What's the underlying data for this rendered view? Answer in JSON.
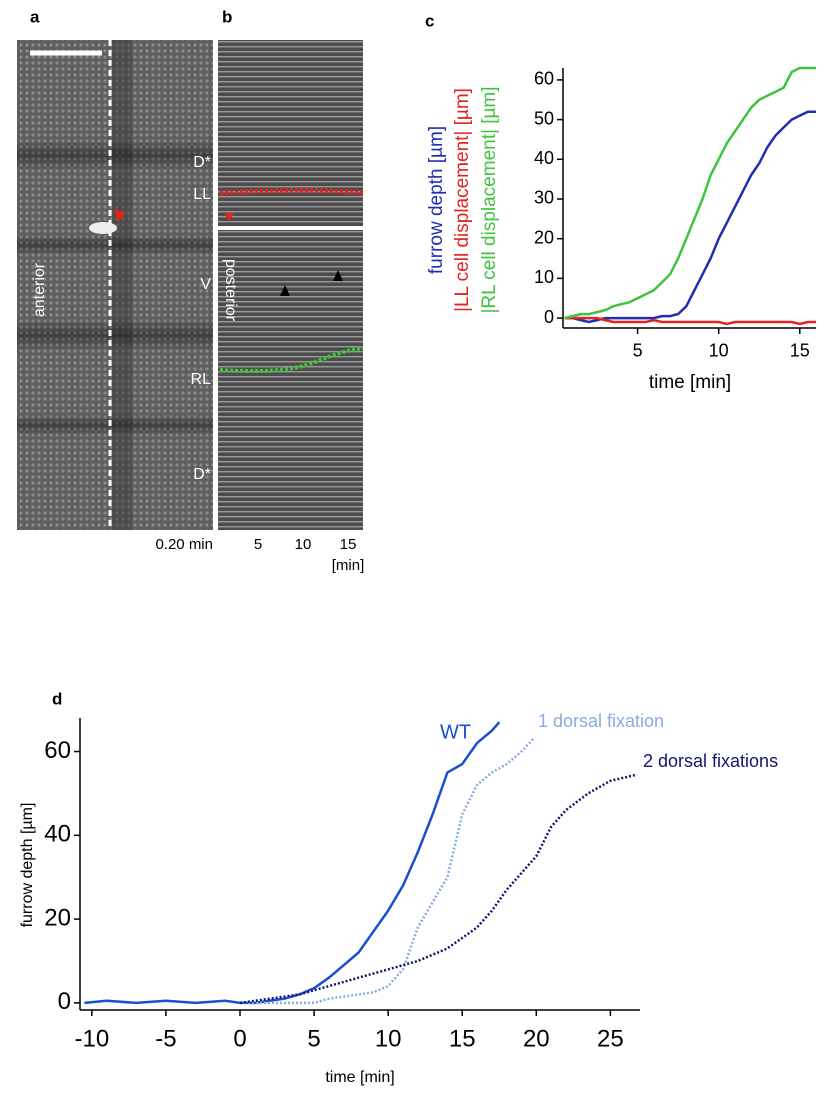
{
  "figure": {
    "panel_labels": [
      "a",
      "b",
      "c",
      "d"
    ],
    "panel_a": {
      "orientation": "anterior",
      "regions": [
        "D*",
        "LL",
        "V",
        "RL",
        "D*"
      ],
      "time_label": "0.20 min"
    },
    "panel_b": {
      "orientation": "posterior",
      "time_ticks": [
        "5",
        "10",
        "15"
      ],
      "time_unit": "[min]"
    }
  },
  "chart_data": [
    {
      "type": "line",
      "xlabel": "time [min]",
      "x": [
        0.5,
        1,
        1.5,
        2,
        2.5,
        3,
        3.5,
        4,
        4.5,
        5,
        5.5,
        6,
        6.5,
        7,
        7.5,
        8,
        8.5,
        9,
        9.5,
        10,
        10.5,
        11,
        11.5,
        12,
        12.5,
        13,
        13.5,
        14,
        14.5,
        15,
        15.5,
        16
      ],
      "series": [
        {
          "name": "furrow depth [µm]",
          "color": "#1f2fb0",
          "values": [
            0,
            0,
            -0.5,
            -1,
            -0.5,
            0,
            0,
            0,
            0,
            0,
            0,
            0,
            0.5,
            0.5,
            1,
            3,
            7,
            11,
            15,
            20,
            24,
            28,
            32,
            36,
            39,
            43,
            46,
            48,
            50,
            51,
            52,
            52
          ]
        },
        {
          "name": "|LL cell displacement| [µm]",
          "color": "#e0241f",
          "values": [
            0,
            0,
            0,
            0,
            0,
            -0.5,
            -1,
            -1,
            -1,
            -1,
            -1,
            -0.5,
            -1,
            -1,
            -1,
            -1,
            -1,
            -1,
            -1,
            -1,
            -1.5,
            -1,
            -1,
            -1,
            -1,
            -1,
            -1,
            -1,
            -1,
            -1.5,
            -1,
            -1
          ]
        },
        {
          "name": "|RL cell displacement| [µm]",
          "color": "#3ec43e",
          "values": [
            0,
            0.5,
            1,
            1,
            1.5,
            2,
            3,
            3.5,
            4,
            5,
            6,
            7,
            9,
            11,
            15,
            20,
            25,
            30,
            36,
            40,
            44,
            47,
            50,
            53,
            55,
            56,
            57,
            58,
            62,
            63,
            63,
            63
          ]
        }
      ],
      "xlim": [
        0.4,
        16
      ],
      "ylim": [
        -2.5,
        63
      ],
      "xticks": [
        5,
        10,
        15
      ],
      "yticks": [
        0,
        10,
        20,
        30,
        40,
        50,
        60
      ]
    },
    {
      "type": "line",
      "xlabel": "time [min]",
      "ylabel": "furrow depth [µm]",
      "series": [
        {
          "name": "WT",
          "color": "#1a4fd1",
          "style": "solid",
          "x": [
            -10.5,
            -9,
            -7,
            -5,
            -3,
            -1,
            0,
            1,
            2,
            3,
            4,
            5,
            6,
            7,
            8,
            9,
            10,
            11,
            12,
            13,
            14,
            15,
            16,
            17,
            17.5
          ],
          "values": [
            0,
            0.5,
            0,
            0.5,
            0,
            0.5,
            0,
            0,
            0.5,
            1,
            2,
            3.5,
            6,
            9,
            12,
            17,
            22,
            28,
            36,
            45,
            55,
            57,
            62,
            65,
            67
          ]
        },
        {
          "name": "1 dorsal fixation",
          "color": "#8aabe0",
          "style": "dotted",
          "x": [
            0,
            1,
            2,
            3,
            4,
            5,
            6,
            7,
            8,
            9,
            10,
            11,
            12,
            13,
            14,
            15,
            16,
            17,
            18,
            19,
            19.8
          ],
          "values": [
            0,
            0,
            0,
            0,
            0,
            0,
            1,
            1.5,
            2,
            2.5,
            4,
            8,
            18,
            24,
            30,
            45,
            52,
            55,
            57,
            60,
            63
          ]
        },
        {
          "name": "2 dorsal fixations",
          "color": "#14146e",
          "style": "dotted",
          "x": [
            0,
            2,
            4,
            6,
            8,
            10,
            12,
            14,
            16,
            17,
            18,
            19.5,
            20,
            21,
            22,
            23.5,
            25,
            26.8
          ],
          "values": [
            0,
            1,
            2,
            4,
            6,
            8,
            10,
            13,
            18,
            22,
            27,
            33,
            35,
            42,
            46,
            50,
            53,
            54.5
          ]
        }
      ],
      "xlim": [
        -10.8,
        27
      ],
      "ylim": [
        -1.7,
        68
      ],
      "xticks": [
        -10,
        -5,
        0,
        5,
        10,
        15,
        20,
        25
      ],
      "yticks": [
        0,
        20,
        40,
        60
      ]
    }
  ]
}
